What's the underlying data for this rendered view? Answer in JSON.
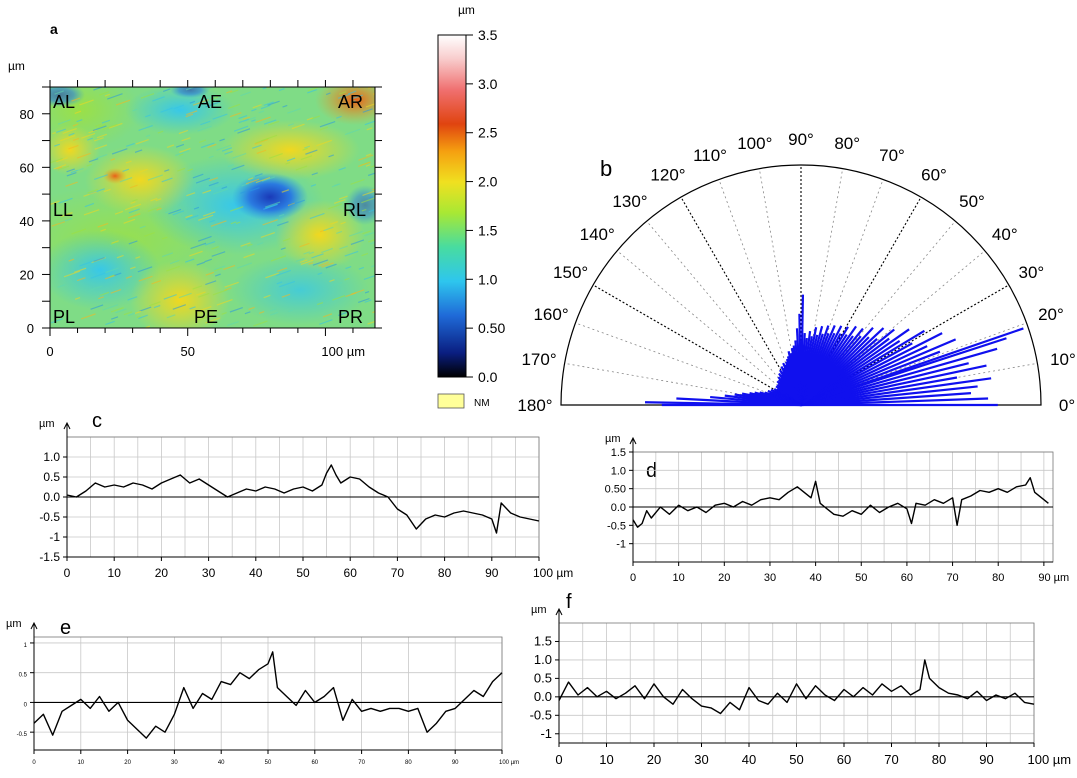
{
  "panel_labels": {
    "a": "a",
    "b": "b",
    "c": "c",
    "d": "d",
    "e": "e",
    "f": "f"
  },
  "chart_data": [
    {
      "panel": "a",
      "type": "heatmap",
      "axis_unit": "µm",
      "x_ticks": [
        "0",
        "50",
        "100 µm"
      ],
      "y_ticks": [
        "0",
        "20",
        "40",
        "60",
        "80"
      ],
      "xlim": [
        0,
        118
      ],
      "ylim": [
        0,
        90
      ],
      "region_labels": [
        "AL",
        "AE",
        "AR",
        "LL",
        "RL",
        "PL",
        "PE",
        "PR"
      ],
      "colorbar": {
        "unit": "µm",
        "ticks": [
          "3.5",
          "3.0",
          "2.5",
          "2.0",
          "1.5",
          "1.0",
          "0.50",
          "0.0"
        ],
        "range": [
          0.0,
          3.5
        ],
        "nm_label": "NM",
        "nm_color": "#ffff99",
        "colors": [
          "#000000",
          "#0a2a9a",
          "#1f7ae0",
          "#33d0e6",
          "#4fe0a0",
          "#b8e830",
          "#f0e020",
          "#f5a010",
          "#e04010",
          "#f06060",
          "#f8c8c8",
          "#ffffff"
        ]
      },
      "dominant_levels_um": {
        "background": 1.4,
        "depression_center": 0.6,
        "AR_corner": 2.8
      }
    },
    {
      "panel": "b",
      "type": "polar_rose",
      "angle_ticks": [
        "0°",
        "10°",
        "20°",
        "30°",
        "40°",
        "50°",
        "60°",
        "70°",
        "80°",
        "90°",
        "100°",
        "110°",
        "120°",
        "130°",
        "140°",
        "150°",
        "160°",
        "170°",
        "180°"
      ],
      "angle_range_deg": [
        0,
        180
      ],
      "series_color": "#1010ee",
      "rose_rays": [
        [
          0,
          0.82
        ],
        [
          2,
          0.78
        ],
        [
          4,
          0.71
        ],
        [
          6,
          0.74
        ],
        [
          8,
          0.8
        ],
        [
          10,
          0.66
        ],
        [
          12,
          0.79
        ],
        [
          14,
          0.72
        ],
        [
          16,
          0.85
        ],
        [
          18,
          0.9
        ],
        [
          19,
          0.98
        ],
        [
          21,
          0.62
        ],
        [
          23,
          0.7
        ],
        [
          25,
          0.58
        ],
        [
          27,
          0.66
        ],
        [
          29,
          0.53
        ],
        [
          31,
          0.6
        ],
        [
          33,
          0.49
        ],
        [
          35,
          0.55
        ],
        [
          37,
          0.46
        ],
        [
          39,
          0.5
        ],
        [
          41,
          0.42
        ],
        [
          43,
          0.47
        ],
        [
          45,
          0.4
        ],
        [
          47,
          0.44
        ],
        [
          49,
          0.38
        ],
        [
          51,
          0.41
        ],
        [
          53,
          0.36
        ],
        [
          55,
          0.4
        ],
        [
          57,
          0.35
        ],
        [
          59,
          0.38
        ],
        [
          61,
          0.34
        ],
        [
          63,
          0.37
        ],
        [
          65,
          0.33
        ],
        [
          67,
          0.36
        ],
        [
          69,
          0.32
        ],
        [
          71,
          0.35
        ],
        [
          73,
          0.31
        ],
        [
          75,
          0.34
        ],
        [
          77,
          0.3
        ],
        [
          79,
          0.33
        ],
        [
          81,
          0.29
        ],
        [
          83,
          0.31
        ],
        [
          85,
          0.28
        ],
        [
          87,
          0.3
        ],
        [
          89,
          0.46
        ],
        [
          91,
          0.38
        ],
        [
          93,
          0.32
        ],
        [
          95,
          0.27
        ],
        [
          97,
          0.25
        ],
        [
          99,
          0.24
        ],
        [
          101,
          0.22
        ],
        [
          103,
          0.23
        ],
        [
          105,
          0.21
        ],
        [
          107,
          0.2
        ],
        [
          109,
          0.19
        ],
        [
          111,
          0.18
        ],
        [
          113,
          0.19
        ],
        [
          115,
          0.17
        ],
        [
          117,
          0.18
        ],
        [
          119,
          0.16
        ],
        [
          121,
          0.17
        ],
        [
          123,
          0.15
        ],
        [
          125,
          0.16
        ],
        [
          127,
          0.14
        ],
        [
          129,
          0.15
        ],
        [
          131,
          0.14
        ],
        [
          133,
          0.13
        ],
        [
          135,
          0.14
        ],
        [
          137,
          0.12
        ],
        [
          139,
          0.13
        ],
        [
          141,
          0.12
        ],
        [
          143,
          0.13
        ],
        [
          145,
          0.11
        ],
        [
          147,
          0.12
        ],
        [
          149,
          0.13
        ],
        [
          151,
          0.12
        ],
        [
          153,
          0.14
        ],
        [
          155,
          0.13
        ],
        [
          157,
          0.15
        ],
        [
          159,
          0.14
        ],
        [
          161,
          0.16
        ],
        [
          163,
          0.18
        ],
        [
          165,
          0.2
        ],
        [
          167,
          0.22
        ],
        [
          169,
          0.25
        ],
        [
          171,
          0.28
        ],
        [
          173,
          0.32
        ],
        [
          175,
          0.38
        ],
        [
          177,
          0.52
        ],
        [
          179,
          0.65
        ],
        [
          180,
          0.58
        ]
      ]
    },
    {
      "panel": "c",
      "type": "line",
      "y_unit": "µm",
      "x_unit": "µm",
      "x_ticks": [
        "0",
        "10",
        "20",
        "30",
        "40",
        "50",
        "60",
        "70",
        "80",
        "90",
        "100 µm"
      ],
      "y_ticks": [
        "1.0",
        "0.5",
        "0.0",
        "-0.5",
        "-1",
        "-1.5"
      ],
      "xlim": [
        0,
        100
      ],
      "ylim": [
        -1.5,
        1.5
      ],
      "x": [
        0,
        2,
        4,
        6,
        8,
        10,
        12,
        14,
        16,
        18,
        20,
        22,
        24,
        26,
        28,
        30,
        32,
        34,
        36,
        38,
        40,
        42,
        44,
        46,
        48,
        50,
        52,
        54,
        55,
        56,
        57,
        58,
        60,
        62,
        64,
        66,
        68,
        70,
        72,
        74,
        76,
        78,
        80,
        82,
        84,
        86,
        88,
        90,
        91,
        92,
        94,
        96,
        98,
        100
      ],
      "y": [
        0.05,
        0.0,
        0.15,
        0.35,
        0.25,
        0.3,
        0.25,
        0.35,
        0.3,
        0.2,
        0.35,
        0.45,
        0.55,
        0.35,
        0.45,
        0.3,
        0.15,
        0.0,
        0.1,
        0.2,
        0.15,
        0.25,
        0.2,
        0.1,
        0.2,
        0.25,
        0.15,
        0.3,
        0.6,
        0.8,
        0.55,
        0.35,
        0.5,
        0.45,
        0.25,
        0.1,
        0.0,
        -0.3,
        -0.45,
        -0.8,
        -0.55,
        -0.45,
        -0.5,
        -0.4,
        -0.35,
        -0.4,
        -0.45,
        -0.55,
        -0.9,
        -0.15,
        -0.4,
        -0.5,
        -0.55,
        -0.6
      ]
    },
    {
      "panel": "d",
      "type": "line",
      "y_unit": "µm",
      "x_unit": "µm",
      "x_ticks": [
        "0",
        "10",
        "20",
        "30",
        "40",
        "50",
        "60",
        "70",
        "80",
        "90 µm"
      ],
      "y_ticks": [
        "1.5",
        "1.0",
        "0.50",
        "0.0",
        "-0.5",
        "-1"
      ],
      "xlim": [
        0,
        92
      ],
      "ylim": [
        -1.5,
        1.5
      ],
      "x": [
        0,
        1,
        2,
        3,
        4,
        6,
        8,
        10,
        12,
        14,
        16,
        18,
        20,
        22,
        24,
        26,
        28,
        30,
        32,
        34,
        36,
        38,
        39,
        40,
        41,
        42,
        44,
        46,
        48,
        50,
        52,
        54,
        56,
        58,
        60,
        61,
        62,
        64,
        66,
        68,
        70,
        71,
        72,
        74,
        76,
        78,
        80,
        82,
        84,
        86,
        87,
        88,
        90,
        91
      ],
      "y": [
        -0.35,
        -0.55,
        -0.45,
        -0.1,
        -0.3,
        0.0,
        -0.2,
        0.05,
        -0.1,
        0.0,
        -0.15,
        0.05,
        0.1,
        0.0,
        0.15,
        0.05,
        0.2,
        0.25,
        0.2,
        0.4,
        0.55,
        0.35,
        0.25,
        0.7,
        0.1,
        0.0,
        -0.2,
        -0.25,
        -0.1,
        -0.2,
        0.05,
        -0.15,
        0.0,
        0.1,
        -0.05,
        -0.45,
        0.1,
        0.05,
        0.2,
        0.1,
        0.25,
        -0.5,
        0.2,
        0.3,
        0.45,
        0.4,
        0.5,
        0.4,
        0.55,
        0.6,
        0.8,
        0.4,
        0.2,
        0.1
      ]
    },
    {
      "panel": "e",
      "type": "line",
      "y_unit": "µm",
      "x_unit": "µm",
      "x_ticks": [
        "0",
        "10",
        "20",
        "30",
        "40",
        "50",
        "60",
        "70",
        "80",
        "90",
        "100 µm"
      ],
      "y_ticks": [
        "1",
        "0.5",
        "0",
        "-0.5"
      ],
      "xlim": [
        0,
        100
      ],
      "ylim": [
        -0.8,
        1.1
      ],
      "x": [
        0,
        2,
        4,
        6,
        8,
        10,
        12,
        14,
        16,
        18,
        20,
        22,
        24,
        26,
        28,
        30,
        32,
        34,
        36,
        38,
        40,
        42,
        44,
        46,
        48,
        50,
        51,
        52,
        54,
        56,
        58,
        60,
        62,
        64,
        66,
        68,
        70,
        72,
        74,
        76,
        78,
        80,
        82,
        84,
        86,
        88,
        90,
        92,
        94,
        96,
        98,
        100
      ],
      "y": [
        -0.35,
        -0.2,
        -0.55,
        -0.15,
        -0.05,
        0.05,
        -0.1,
        0.1,
        -0.15,
        0.0,
        -0.3,
        -0.45,
        -0.6,
        -0.4,
        -0.5,
        -0.2,
        0.25,
        -0.1,
        0.15,
        0.05,
        0.35,
        0.3,
        0.5,
        0.4,
        0.55,
        0.65,
        0.85,
        0.25,
        0.1,
        -0.05,
        0.2,
        0.0,
        0.1,
        0.25,
        -0.3,
        0.05,
        -0.15,
        -0.1,
        -0.15,
        -0.1,
        -0.1,
        -0.15,
        -0.1,
        -0.5,
        -0.35,
        -0.15,
        -0.1,
        0.05,
        0.2,
        0.1,
        0.35,
        0.5
      ]
    },
    {
      "panel": "f",
      "type": "line",
      "y_unit": "µm",
      "x_unit": "µm",
      "x_ticks": [
        "0",
        "10",
        "20",
        "30",
        "40",
        "50",
        "60",
        "70",
        "80",
        "90",
        "100 µm"
      ],
      "y_ticks": [
        "1.5",
        "1.0",
        "0.5",
        "0.0",
        "-0.5",
        "-1"
      ],
      "xlim": [
        0,
        100
      ],
      "ylim": [
        -1.25,
        2.0
      ],
      "x": [
        0,
        2,
        4,
        6,
        8,
        10,
        12,
        14,
        16,
        18,
        20,
        22,
        24,
        26,
        28,
        30,
        32,
        34,
        36,
        38,
        40,
        42,
        44,
        46,
        48,
        50,
        52,
        54,
        56,
        58,
        60,
        62,
        64,
        66,
        68,
        70,
        72,
        74,
        76,
        77,
        78,
        80,
        82,
        84,
        86,
        88,
        90,
        92,
        94,
        96,
        98,
        100
      ],
      "y": [
        -0.1,
        0.4,
        0.05,
        0.25,
        0.0,
        0.15,
        -0.05,
        0.1,
        0.3,
        -0.05,
        0.35,
        0.0,
        -0.2,
        0.2,
        -0.05,
        -0.25,
        -0.3,
        -0.45,
        -0.15,
        -0.35,
        0.25,
        -0.1,
        -0.2,
        0.1,
        -0.15,
        0.35,
        -0.05,
        0.3,
        0.05,
        -0.1,
        0.2,
        0.0,
        0.25,
        0.05,
        0.35,
        0.15,
        0.3,
        0.05,
        0.2,
        1.0,
        0.5,
        0.25,
        0.1,
        0.05,
        -0.05,
        0.15,
        -0.1,
        0.05,
        -0.05,
        0.1,
        -0.15,
        -0.2
      ]
    }
  ]
}
